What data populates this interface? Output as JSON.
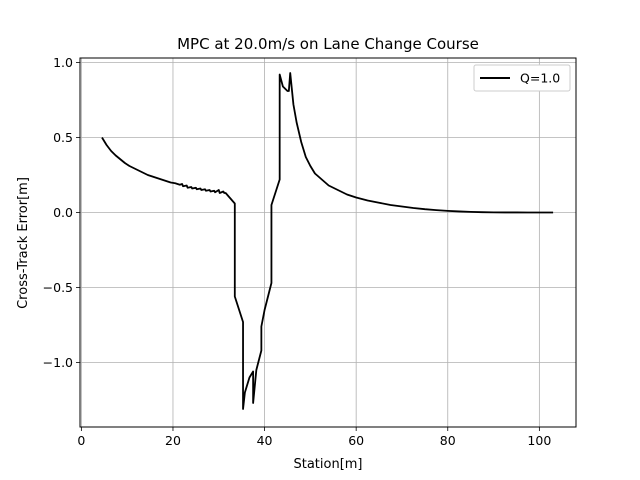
{
  "chart_data": {
    "type": "line",
    "title": "MPC at 20.0m/s on Lane Change Course",
    "xlabel": "Station[m]",
    "ylabel": "Cross-Track Error[m]",
    "xlim": [
      -0.3,
      108
    ],
    "ylim": [
      -1.43,
      1.03
    ],
    "x_ticks": [
      0,
      20,
      40,
      60,
      80,
      100
    ],
    "x_tick_labels": [
      "0",
      "20",
      "40",
      "60",
      "80",
      "100"
    ],
    "y_ticks": [
      -1.0,
      -0.5,
      0.0,
      0.5,
      1.0
    ],
    "y_tick_labels": [
      "−1.0",
      "−0.5",
      "0.0",
      "0.5",
      "1.0"
    ],
    "grid": true,
    "legend_position": "top-right",
    "series": [
      {
        "name": "Q=1.0",
        "color": "#000000",
        "x": [
          4.5,
          5.5,
          6.5,
          7.5,
          8.5,
          9.5,
          10.5,
          11.5,
          12.5,
          13.5,
          14.5,
          15.5,
          16.5,
          17.5,
          18.5,
          19.5,
          20.5,
          21.5,
          22.0,
          22.2,
          23.0,
          23.2,
          24.0,
          24.2,
          25.0,
          25.2,
          26.0,
          26.2,
          27.0,
          27.2,
          28.0,
          28.2,
          29.0,
          29.2,
          30.0,
          30.2,
          31.0,
          31.2,
          31.5,
          33.5,
          33.5,
          35.3,
          35.3,
          35.7,
          36.7,
          37.5,
          37.5,
          38.2,
          39.3,
          39.3,
          40.0,
          41.5,
          41.5,
          43.3,
          43.3,
          44.0,
          45.0,
          45.3,
          45.6,
          46.3,
          47.0,
          48.0,
          49.0,
          50.0,
          51.0,
          52.5,
          54.0,
          56.0,
          58.0,
          60.0,
          62.5,
          65.0,
          67.5,
          70.0,
          72.5,
          75.0,
          77.5,
          80.0,
          82.5,
          85.0,
          87.5,
          90.0,
          92.5,
          95.0,
          97.5,
          100.0,
          103.0
        ],
        "y": [
          0.5,
          0.45,
          0.41,
          0.38,
          0.355,
          0.33,
          0.31,
          0.295,
          0.28,
          0.265,
          0.25,
          0.24,
          0.23,
          0.22,
          0.21,
          0.2,
          0.195,
          0.185,
          0.19,
          0.175,
          0.18,
          0.165,
          0.17,
          0.16,
          0.165,
          0.155,
          0.16,
          0.15,
          0.155,
          0.145,
          0.15,
          0.14,
          0.145,
          0.135,
          0.15,
          0.13,
          0.14,
          0.13,
          0.13,
          0.06,
          -0.56,
          -0.73,
          -1.31,
          -1.2,
          -1.1,
          -1.06,
          -1.27,
          -1.05,
          -0.92,
          -0.76,
          -0.65,
          -0.47,
          0.05,
          0.22,
          0.92,
          0.84,
          0.81,
          0.81,
          0.93,
          0.72,
          0.6,
          0.47,
          0.37,
          0.31,
          0.26,
          0.22,
          0.18,
          0.15,
          0.12,
          0.1,
          0.08,
          0.065,
          0.05,
          0.04,
          0.03,
          0.022,
          0.016,
          0.011,
          0.007,
          0.004,
          0.002,
          0.001,
          0.0005,
          0.0003,
          0.0002,
          0.0001,
          0.0
        ]
      }
    ]
  }
}
